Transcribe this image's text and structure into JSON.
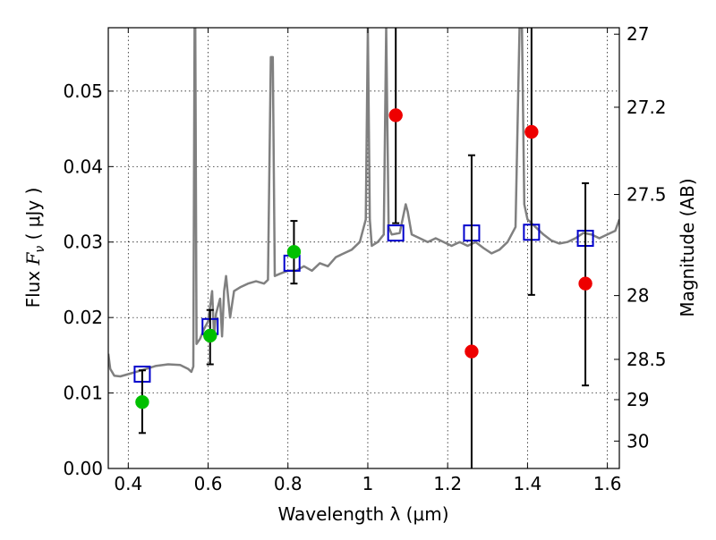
{
  "chart_data": {
    "type": "scatter",
    "title": "",
    "xlabel": "Wavelength  λ (μm)",
    "ylabel": "Flux  F_ν  ( μJy )",
    "ylabel_parts": {
      "a": "Flux  ",
      "sym": "F",
      "sub": "ν",
      "b": "  ( μJy )"
    },
    "y2label": "Magnitude (AB)",
    "xlim": [
      0.35,
      1.63
    ],
    "ylim": [
      0.0,
      0.0584
    ],
    "grid": true,
    "x_ticks": [
      0.4,
      0.6,
      0.8,
      1.0,
      1.2,
      1.4,
      1.6
    ],
    "x_tick_labels": [
      "0.4",
      "0.6",
      "0.8",
      "1",
      "1.2",
      "1.4",
      "1.6"
    ],
    "y_ticks": [
      0.0,
      0.01,
      0.02,
      0.03,
      0.04,
      0.05
    ],
    "y_tick_labels": [
      "0.00",
      "0.01",
      "0.02",
      "0.03",
      "0.04",
      "0.05"
    ],
    "y2_ticks": [
      27,
      27.2,
      27.5,
      28,
      28.5,
      29,
      30
    ],
    "y2_tick_labels": [
      "27",
      "27.2",
      "27.5",
      "28",
      "28.5",
      "29",
      "30"
    ],
    "series": [
      {
        "kind": "line",
        "color": "#808080",
        "points": [
          [
            0.35,
            0.0152
          ],
          [
            0.355,
            0.0132
          ],
          [
            0.365,
            0.0123
          ],
          [
            0.38,
            0.0122
          ],
          [
            0.4,
            0.0125
          ],
          [
            0.42,
            0.0128
          ],
          [
            0.445,
            0.0132
          ],
          [
            0.47,
            0.0136
          ],
          [
            0.5,
            0.0138
          ],
          [
            0.53,
            0.0137
          ],
          [
            0.55,
            0.0132
          ],
          [
            0.558,
            0.0128
          ],
          [
            0.563,
            0.0135
          ],
          [
            0.566,
            0.0584
          ],
          [
            0.568,
            0.0584
          ],
          [
            0.571,
            0.0165
          ],
          [
            0.58,
            0.0172
          ],
          [
            0.59,
            0.0185
          ],
          [
            0.6,
            0.0195
          ],
          [
            0.605,
            0.0215
          ],
          [
            0.61,
            0.0235
          ],
          [
            0.615,
            0.0175
          ],
          [
            0.62,
            0.0205
          ],
          [
            0.63,
            0.0225
          ],
          [
            0.635,
            0.0175
          ],
          [
            0.64,
            0.0235
          ],
          [
            0.645,
            0.0255
          ],
          [
            0.655,
            0.02
          ],
          [
            0.665,
            0.0235
          ],
          [
            0.68,
            0.024
          ],
          [
            0.7,
            0.0245
          ],
          [
            0.72,
            0.0248
          ],
          [
            0.74,
            0.0245
          ],
          [
            0.75,
            0.025
          ],
          [
            0.757,
            0.0545
          ],
          [
            0.762,
            0.0545
          ],
          [
            0.767,
            0.0255
          ],
          [
            0.78,
            0.0258
          ],
          [
            0.8,
            0.0262
          ],
          [
            0.82,
            0.0262
          ],
          [
            0.84,
            0.0268
          ],
          [
            0.86,
            0.0262
          ],
          [
            0.88,
            0.0272
          ],
          [
            0.9,
            0.0268
          ],
          [
            0.92,
            0.028
          ],
          [
            0.94,
            0.0285
          ],
          [
            0.96,
            0.029
          ],
          [
            0.98,
            0.03
          ],
          [
            0.995,
            0.033
          ],
          [
            1.0,
            0.0584
          ],
          [
            1.005,
            0.033
          ],
          [
            1.01,
            0.0295
          ],
          [
            1.025,
            0.03
          ],
          [
            1.04,
            0.031
          ],
          [
            1.046,
            0.0584
          ],
          [
            1.052,
            0.032
          ],
          [
            1.06,
            0.031
          ],
          [
            1.08,
            0.0312
          ],
          [
            1.095,
            0.035
          ],
          [
            1.1,
            0.034
          ],
          [
            1.11,
            0.031
          ],
          [
            1.13,
            0.0305
          ],
          [
            1.15,
            0.03
          ],
          [
            1.17,
            0.0305
          ],
          [
            1.19,
            0.03
          ],
          [
            1.21,
            0.0295
          ],
          [
            1.23,
            0.03
          ],
          [
            1.25,
            0.0295
          ],
          [
            1.27,
            0.03
          ],
          [
            1.29,
            0.0292
          ],
          [
            1.31,
            0.0285
          ],
          [
            1.33,
            0.029
          ],
          [
            1.35,
            0.03
          ],
          [
            1.37,
            0.032
          ],
          [
            1.38,
            0.0584
          ],
          [
            1.386,
            0.0584
          ],
          [
            1.392,
            0.035
          ],
          [
            1.4,
            0.033
          ],
          [
            1.42,
            0.032
          ],
          [
            1.44,
            0.031
          ],
          [
            1.46,
            0.0302
          ],
          [
            1.48,
            0.0298
          ],
          [
            1.5,
            0.03
          ],
          [
            1.52,
            0.0305
          ],
          [
            1.54,
            0.0312
          ],
          [
            1.56,
            0.031
          ],
          [
            1.58,
            0.0305
          ],
          [
            1.6,
            0.031
          ],
          [
            1.62,
            0.0315
          ],
          [
            1.63,
            0.033
          ]
        ]
      },
      {
        "kind": "marker",
        "marker": "open-square",
        "color": "#0000cc",
        "points": [
          [
            0.435,
            0.0125
          ],
          [
            0.605,
            0.0188
          ],
          [
            0.81,
            0.0272
          ],
          [
            1.07,
            0.0312
          ],
          [
            1.26,
            0.0312
          ],
          [
            1.41,
            0.0313
          ],
          [
            1.545,
            0.0305
          ]
        ]
      },
      {
        "kind": "marker",
        "marker": "filled-circle",
        "color": "#00c000",
        "points": [
          {
            "x": 0.435,
            "y": 0.0088,
            "err": [
              0.0047,
              0.013
            ]
          },
          {
            "x": 0.605,
            "y": 0.0176,
            "err": [
              0.0138,
              0.021
            ]
          },
          {
            "x": 0.815,
            "y": 0.0287,
            "err": [
              0.0245,
              0.0328
            ]
          }
        ]
      },
      {
        "kind": "marker",
        "marker": "filled-circle",
        "color": "#ee0000",
        "points": [
          {
            "x": 1.07,
            "y": 0.0468,
            "err": [
              0.0325,
              0.0584
            ]
          },
          {
            "x": 1.26,
            "y": 0.0155,
            "err": [
              0.0,
              0.0415
            ]
          },
          {
            "x": 1.41,
            "y": 0.0446,
            "err": [
              0.023,
              0.0584
            ]
          },
          {
            "x": 1.545,
            "y": 0.0245,
            "err": [
              0.011,
              0.0378
            ]
          }
        ]
      }
    ]
  }
}
